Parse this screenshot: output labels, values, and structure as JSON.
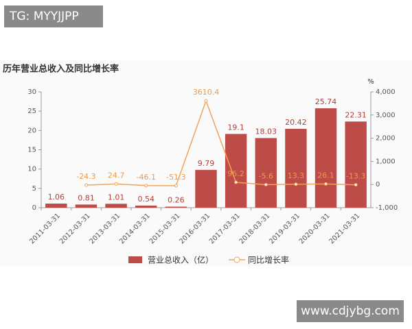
{
  "watermarks": [
    "TG: MYYJJPP",
    "www.cdjybg.com"
  ],
  "chart_data": {
    "type": "bar-line",
    "title": "历年营业总收入及同比增长率",
    "y2_unit": "%",
    "categories": [
      "2011-03-31",
      "2012-03-31",
      "2013-03-31",
      "2014-03-31",
      "2015-03-31",
      "2016-03-31",
      "2017-03-31",
      "2018-03-31",
      "2019-03-31",
      "2020-03-31",
      "2021-03-31"
    ],
    "series": [
      {
        "name": "营业总收入（亿）",
        "type": "bar",
        "color": "#bd4b48",
        "label_color": "#b0403d",
        "values": [
          1.06,
          0.81,
          1.01,
          0.54,
          0.26,
          9.79,
          19.1,
          18.03,
          20.42,
          25.74,
          22.31
        ]
      },
      {
        "name": "同比增长率",
        "type": "line",
        "axis": "y2",
        "color": "#f0a358",
        "label_color": "#ec9a4c",
        "values": [
          null,
          -24.3,
          24.7,
          -46.1,
          -51.3,
          3610.4,
          95.2,
          -5.6,
          13.3,
          26.1,
          -13.3
        ]
      }
    ],
    "ylim": [
      0,
      30
    ],
    "yticks": [
      0,
      5,
      10,
      15,
      20,
      25,
      30
    ],
    "y2lim": [
      -1000,
      4000
    ],
    "y2ticks": [
      {
        "value": -1000,
        "label": "-1,000"
      },
      0,
      {
        "value": 1000,
        "label": "1,000"
      },
      {
        "value": 2000,
        "label": "2,000"
      },
      {
        "value": 3000,
        "label": "3,000"
      },
      {
        "value": 4000,
        "label": "4,000"
      }
    ]
  }
}
